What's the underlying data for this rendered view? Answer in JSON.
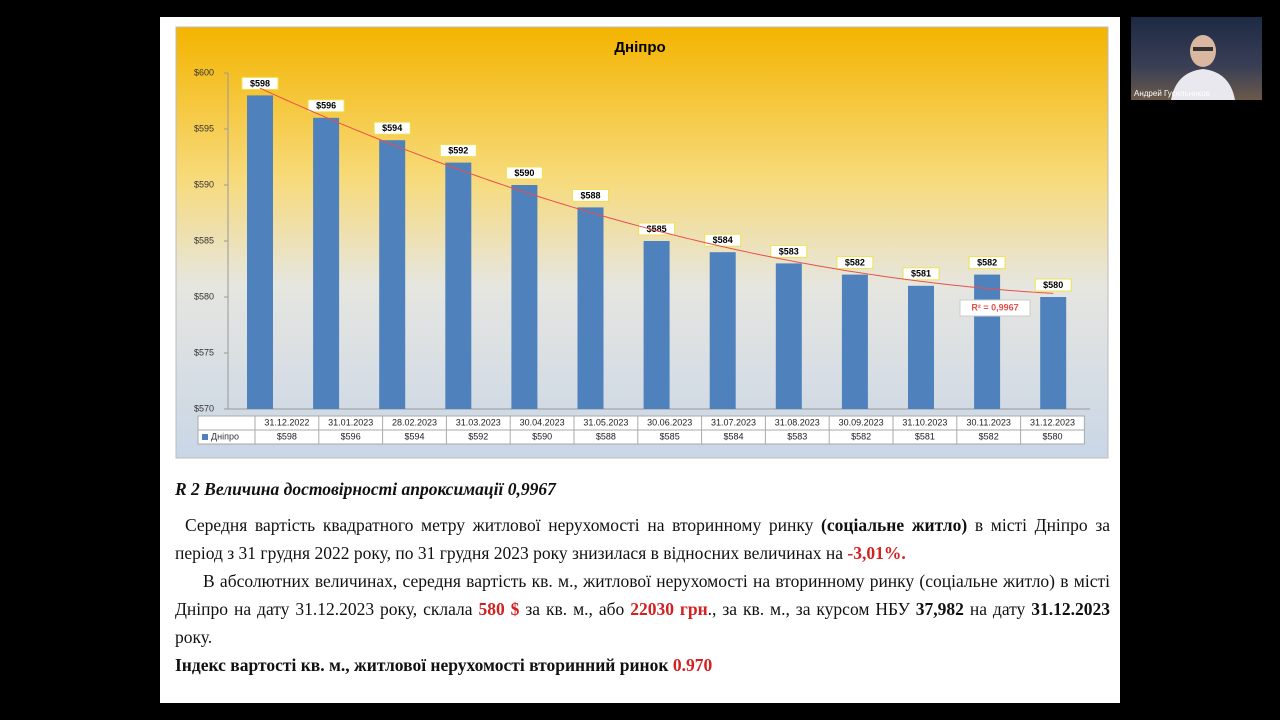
{
  "chart_data": {
    "type": "bar",
    "title": "Дніпро",
    "categories": [
      "31.12.2022",
      "31.01.2023",
      "28.02.2023",
      "31.03.2023",
      "30.04.2023",
      "31.05.2023",
      "30.06.2023",
      "31.07.2023",
      "31.08.2023",
      "30.09.2023",
      "31.10.2023",
      "30.11.2023",
      "31.12.2023"
    ],
    "series": [
      {
        "name": "Дніпро",
        "color": "#4f81bd",
        "values": [
          598,
          596,
          594,
          592,
          590,
          588,
          585,
          584,
          583,
          582,
          581,
          582,
          580
        ],
        "value_labels": [
          "$598",
          "$596",
          "$594",
          "$592",
          "$590",
          "$588",
          "$585",
          "$584",
          "$583",
          "$582",
          "$581",
          "$582",
          "$580"
        ]
      }
    ],
    "ylim": [
      570,
      600
    ],
    "yticks": [
      {
        "value": 570,
        "label": "$570"
      },
      {
        "value": 575,
        "label": "$575"
      },
      {
        "value": 580,
        "label": "$580"
      },
      {
        "value": 585,
        "label": "$585"
      },
      {
        "value": 590,
        "label": "$590"
      },
      {
        "value": 595,
        "label": "$595"
      },
      {
        "value": 600,
        "label": "$600"
      }
    ],
    "trendline": {
      "color": "#e8504a",
      "label": "R² = 0,9967"
    }
  },
  "text": {
    "r2_note": "R 2 Величина достовірності апроксимації 0,9967",
    "p1": [
      "Середня вартість квадратного метру житлової нерухомості на вторинному ринку ",
      "(соціальне житло)",
      " в місті Дніпро за період з 31 грудня 2022 року, по 31 грудня 2023 року  знизилася в відносних величинах на ",
      "-3,01%."
    ],
    "p2": [
      "В абсолютних величинах, середня вартість кв. м., житлової нерухомості на вторинному ринку (соціальне житло) в місті Дніпро на дату 31.12.2023 року, склала ",
      "580 $",
      " за кв. м., або ",
      "22030 грн",
      "., за кв. м., за курсом НБУ ",
      "37,982",
      " на дату ",
      "31.12.2023",
      " року."
    ],
    "p3": [
      "Індекс вартості кв. м., житлової нерухомості вторинний ринок ",
      "0.970"
    ]
  },
  "participant": {
    "name": "Андрей Гусельников"
  }
}
